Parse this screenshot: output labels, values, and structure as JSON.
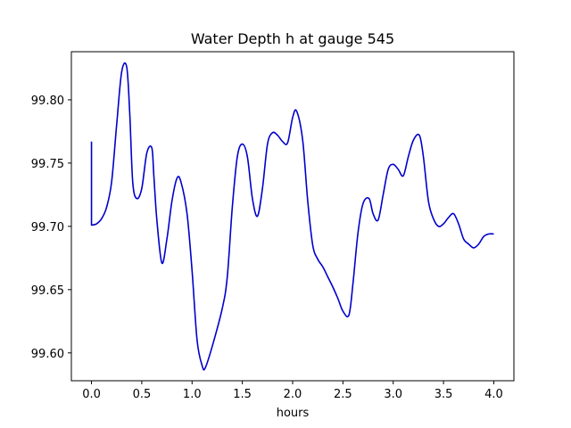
{
  "chart_data": {
    "type": "line",
    "title": "Water Depth h at gauge 545",
    "xlabel": "hours",
    "ylabel": "",
    "xlim": [
      -0.2,
      4.2
    ],
    "ylim": [
      99.578,
      99.838
    ],
    "xticks": [
      0.0,
      0.5,
      1.0,
      1.5,
      2.0,
      2.5,
      3.0,
      3.5,
      4.0
    ],
    "xtick_labels": [
      "0.0",
      "0.5",
      "1.0",
      "1.5",
      "2.0",
      "2.5",
      "3.0",
      "3.5",
      "4.0"
    ],
    "yticks": [
      99.6,
      99.65,
      99.7,
      99.75,
      99.8
    ],
    "ytick_labels": [
      "99.60",
      "99.65",
      "99.70",
      "99.75",
      "99.80"
    ],
    "grid": false,
    "series": [
      {
        "color": "#0000cc",
        "x": [
          0.0,
          0.0,
          0.0,
          0.05,
          0.1,
          0.15,
          0.2,
          0.25,
          0.3,
          0.35,
          0.38,
          0.41,
          0.45,
          0.5,
          0.55,
          0.6,
          0.62,
          0.65,
          0.7,
          0.75,
          0.8,
          0.85,
          0.89,
          0.95,
          1.0,
          1.05,
          1.1,
          1.13,
          1.2,
          1.3,
          1.35,
          1.4,
          1.45,
          1.5,
          1.55,
          1.6,
          1.65,
          1.7,
          1.75,
          1.8,
          1.85,
          1.9,
          1.95,
          2.0,
          2.04,
          2.1,
          2.15,
          2.2,
          2.25,
          2.3,
          2.35,
          2.4,
          2.45,
          2.5,
          2.56,
          2.6,
          2.65,
          2.7,
          2.76,
          2.8,
          2.85,
          2.9,
          2.95,
          3.0,
          3.05,
          3.1,
          3.15,
          3.2,
          3.26,
          3.3,
          3.35,
          3.4,
          3.45,
          3.5,
          3.55,
          3.6,
          3.65,
          3.7,
          3.75,
          3.8,
          3.85,
          3.9,
          3.95,
          4.0
        ],
        "y": [
          99.767,
          99.701,
          99.701,
          99.702,
          99.706,
          99.715,
          99.735,
          99.78,
          99.822,
          99.826,
          99.79,
          99.735,
          99.722,
          99.73,
          99.758,
          99.762,
          99.74,
          99.705,
          99.671,
          99.69,
          99.72,
          99.738,
          99.735,
          99.71,
          99.665,
          99.61,
          99.59,
          99.588,
          99.605,
          99.635,
          99.66,
          99.715,
          99.755,
          99.765,
          99.755,
          99.722,
          99.708,
          99.73,
          99.765,
          99.774,
          99.772,
          99.767,
          99.766,
          99.786,
          99.791,
          99.768,
          99.72,
          99.685,
          99.674,
          99.668,
          99.66,
          99.652,
          99.643,
          99.633,
          99.63,
          99.655,
          99.695,
          99.718,
          99.722,
          99.71,
          99.705,
          99.725,
          99.745,
          99.749,
          99.745,
          99.74,
          99.755,
          99.768,
          99.772,
          99.755,
          99.72,
          99.706,
          99.7,
          99.702,
          99.707,
          99.71,
          99.702,
          99.69,
          99.686,
          99.683,
          99.686,
          99.692,
          99.694,
          99.694
        ]
      }
    ]
  }
}
